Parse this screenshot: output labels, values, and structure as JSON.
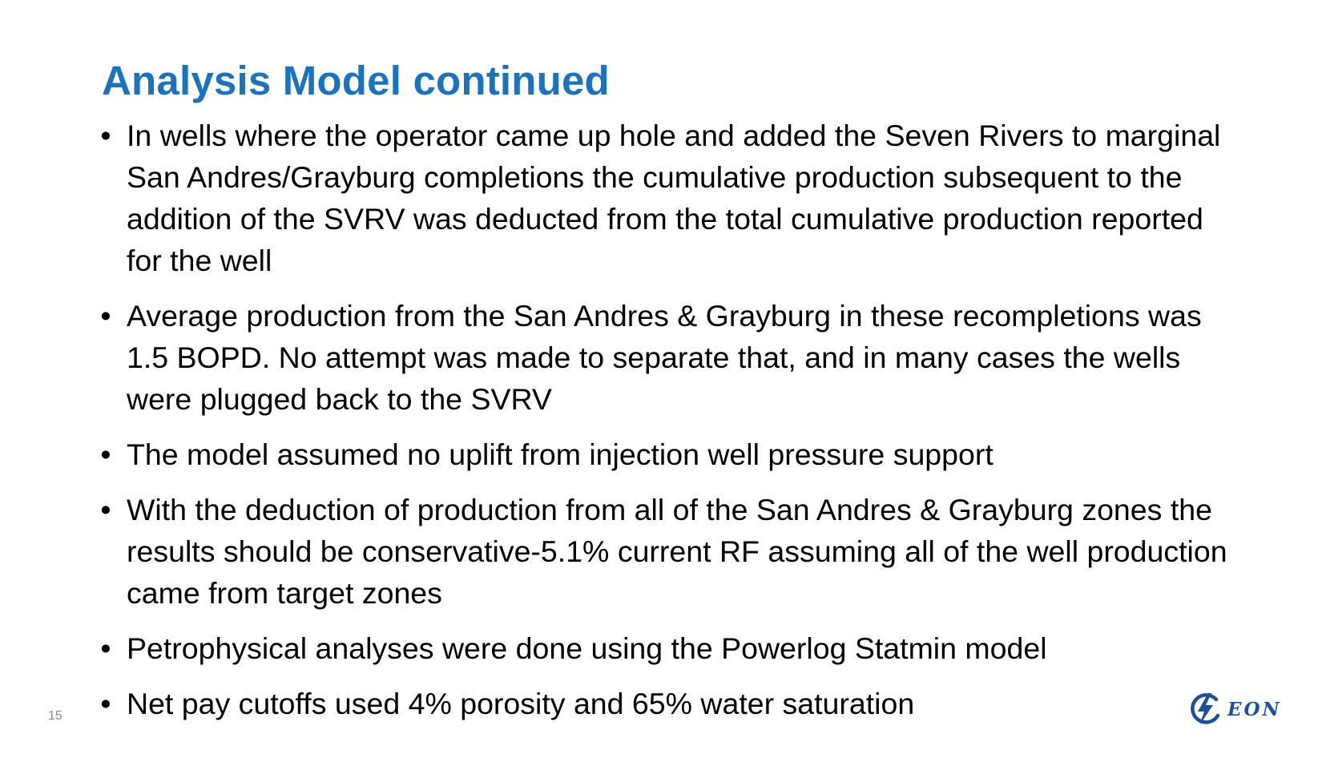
{
  "colors": {
    "title": "#1a73c1",
    "body_text": "#000000",
    "logo": "#1b4fa0",
    "page_number": "#8a8a8a"
  },
  "slide": {
    "title": "Analysis Model continued",
    "bullet_symbol": "•",
    "bullets": [
      "In wells where the operator came up hole and added the Seven Rivers to marginal San Andres/Grayburg completions the cumulative production subsequent to the addition of the SVRV was deducted from the total cumulative production reported for the well",
      "Average production from the San Andres & Grayburg in these recompletions was 1.5 BOPD.  No attempt was made to separate that, and in many cases the wells were plugged back to the SVRV",
      "The model assumed no uplift from injection well pressure support",
      "With the deduction of production from all of the San Andres & Grayburg zones the results should be conservative-5.1% current RF assuming all of the well production came from target zones",
      "Petrophysical analyses were done using the Powerlog Statmin model",
      "Net pay cutoffs used 4% porosity and 65% water saturation"
    ],
    "page_number": "15"
  },
  "logo": {
    "icon": "lightning-bolt-circle-icon",
    "text": "EON"
  }
}
